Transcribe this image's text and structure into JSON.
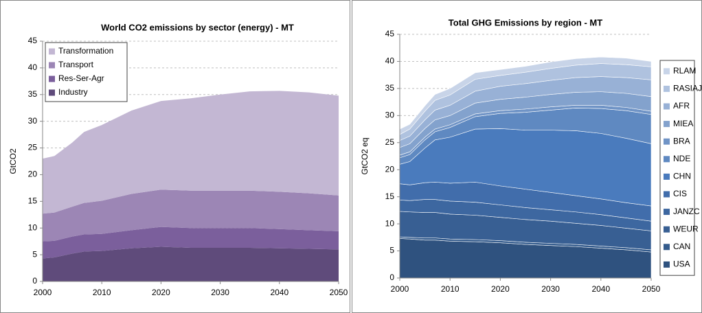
{
  "chart_data": [
    {
      "type": "area",
      "stacked": true,
      "title": "World CO2 emissions by sector (energy) - MT",
      "y_label": "GtCO2",
      "x": [
        2000,
        2002,
        2005,
        2007,
        2010,
        2015,
        2020,
        2025,
        2030,
        2035,
        2040,
        2045,
        2050
      ],
      "series": [
        {
          "name": "Industry",
          "color": "#5f4b7b",
          "values": [
            4.3,
            4.5,
            5.2,
            5.6,
            5.7,
            6.2,
            6.5,
            6.3,
            6.3,
            6.3,
            6.2,
            6.1,
            6.0
          ]
        },
        {
          "name": "Res-Ser-Agr",
          "color": "#7b5f9c",
          "values": [
            3.2,
            3.1,
            3.2,
            3.2,
            3.2,
            3.4,
            3.7,
            3.7,
            3.7,
            3.7,
            3.6,
            3.5,
            3.4
          ]
        },
        {
          "name": "Transport",
          "color": "#9c86b5",
          "values": [
            5.2,
            5.3,
            5.6,
            5.9,
            6.2,
            6.8,
            7.0,
            7.0,
            7.0,
            7.0,
            7.0,
            6.9,
            6.7
          ]
        },
        {
          "name": "Transformation",
          "color": "#c3b7d3",
          "values": [
            10.3,
            10.6,
            12.0,
            13.3,
            14.2,
            15.6,
            16.6,
            17.3,
            18.0,
            18.6,
            18.9,
            18.9,
            18.7
          ]
        }
      ],
      "xlim": [
        2000,
        2050
      ],
      "xticks": [
        2000,
        2010,
        2020,
        2030,
        2040,
        2050
      ],
      "ylim": [
        0,
        45
      ],
      "yticks": [
        0,
        5,
        10,
        15,
        20,
        25,
        30,
        35,
        40,
        45
      ],
      "grid": true,
      "legend": "upper left"
    },
    {
      "type": "area",
      "stacked": true,
      "title": "Total GHG Emissions by region - MT",
      "y_label": "GtCO2 eq",
      "x": [
        2000,
        2002,
        2005,
        2007,
        2010,
        2015,
        2020,
        2025,
        2030,
        2035,
        2040,
        2045,
        2050
      ],
      "series": [
        {
          "name": "USA",
          "color": "#2f527f",
          "values": [
            7.3,
            7.2,
            7.0,
            7.0,
            6.8,
            6.7,
            6.5,
            6.2,
            6.0,
            5.8,
            5.5,
            5.2,
            4.8
          ]
        },
        {
          "name": "CAN",
          "color": "#345b8c",
          "values": [
            0.3,
            0.3,
            0.4,
            0.4,
            0.4,
            0.4,
            0.4,
            0.4,
            0.4,
            0.4,
            0.4,
            0.4,
            0.4
          ]
        },
        {
          "name": "WEUR",
          "color": "#385f93",
          "values": [
            4.7,
            4.7,
            4.7,
            4.7,
            4.6,
            4.5,
            4.3,
            4.2,
            4.1,
            3.9,
            3.8,
            3.6,
            3.5
          ]
        },
        {
          "name": "JANZC",
          "color": "#3d67a0",
          "values": [
            2.1,
            2.1,
            2.4,
            2.4,
            2.4,
            2.4,
            2.3,
            2.2,
            2.1,
            2.1,
            2.0,
            1.9,
            1.8
          ]
        },
        {
          "name": "CIS",
          "color": "#416dab",
          "values": [
            3.0,
            2.9,
            3.1,
            3.2,
            3.3,
            3.7,
            3.5,
            3.4,
            3.2,
            3.0,
            2.9,
            2.8,
            2.8
          ]
        },
        {
          "name": "CHN",
          "color": "#4a7bbd",
          "values": [
            3.6,
            4.3,
            6.4,
            7.8,
            8.5,
            9.8,
            10.6,
            10.9,
            11.5,
            12.0,
            12.1,
            11.9,
            11.5
          ]
        },
        {
          "name": "NDE",
          "color": "#5f89c1",
          "values": [
            1.2,
            1.3,
            1.5,
            1.5,
            1.8,
            2.3,
            2.8,
            3.3,
            3.7,
            4.2,
            4.6,
            5.1,
            5.4
          ]
        },
        {
          "name": "BRA",
          "color": "#7094c6",
          "values": [
            0.5,
            0.5,
            0.5,
            0.5,
            0.5,
            0.5,
            0.5,
            0.6,
            0.6,
            0.5,
            0.6,
            0.6,
            0.6
          ]
        },
        {
          "name": "MIEA",
          "color": "#83a2cd",
          "values": [
            1.4,
            1.5,
            1.6,
            1.7,
            1.7,
            2.0,
            2.1,
            2.2,
            2.3,
            2.4,
            2.5,
            2.6,
            2.7
          ]
        },
        {
          "name": "AFR",
          "color": "#98b1d6",
          "values": [
            1.3,
            1.4,
            1.6,
            1.8,
            1.9,
            2.2,
            2.4,
            2.5,
            2.6,
            2.7,
            2.8,
            2.9,
            3.1
          ]
        },
        {
          "name": "RASIAJ",
          "color": "#afc2df",
          "values": [
            1.1,
            1.3,
            1.6,
            1.8,
            1.9,
            2.2,
            2.0,
            2.1,
            2.2,
            2.3,
            2.4,
            2.4,
            2.4
          ]
        },
        {
          "name": "RLAM",
          "color": "#c8d4e8",
          "values": [
            1.0,
            0.9,
            1.0,
            1.1,
            1.2,
            1.2,
            1.1,
            1.1,
            1.2,
            1.2,
            1.2,
            1.2,
            1.0
          ]
        }
      ],
      "xlim": [
        2000,
        2050
      ],
      "xticks": [
        2000,
        2010,
        2020,
        2030,
        2040,
        2050
      ],
      "ylim": [
        0,
        45
      ],
      "yticks": [
        0,
        5,
        10,
        15,
        20,
        25,
        30,
        35,
        40,
        45
      ],
      "grid": true,
      "legend": "right"
    }
  ]
}
